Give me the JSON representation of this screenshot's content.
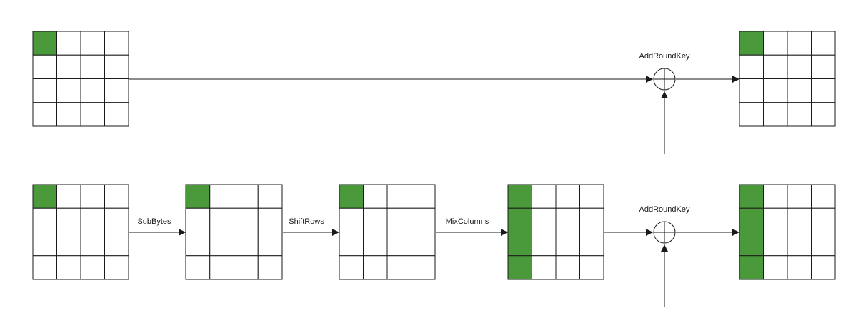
{
  "labels": {
    "top_add_round_key": "AddRoundKey",
    "sub_bytes": "SubBytes",
    "shift_rows": "ShiftRows",
    "mix_columns": "MixColumns",
    "bottom_add_round_key": "AddRoundKey"
  },
  "colors": {
    "highlight": "#4a9a3c",
    "stroke": "#1a1a1a",
    "background": "#ffffff"
  },
  "matrices": {
    "top_input": {
      "rows": 4,
      "cols": 4,
      "highlighted_cells": [
        [
          0,
          0
        ]
      ]
    },
    "top_output": {
      "rows": 4,
      "cols": 4,
      "highlighted_cells": [
        [
          0,
          0
        ]
      ]
    },
    "bottom_input": {
      "rows": 4,
      "cols": 4,
      "highlighted_cells": [
        [
          0,
          0
        ]
      ]
    },
    "after_sub_bytes": {
      "rows": 4,
      "cols": 4,
      "highlighted_cells": [
        [
          0,
          0
        ]
      ]
    },
    "after_shift_rows": {
      "rows": 4,
      "cols": 4,
      "highlighted_cells": [
        [
          0,
          0
        ]
      ]
    },
    "after_mix_columns": {
      "rows": 4,
      "cols": 4,
      "highlighted_cells": [
        [
          0,
          0
        ],
        [
          1,
          0
        ],
        [
          2,
          0
        ],
        [
          3,
          0
        ]
      ]
    },
    "bottom_output": {
      "rows": 4,
      "cols": 4,
      "highlighted_cells": [
        [
          0,
          0
        ],
        [
          1,
          0
        ],
        [
          2,
          0
        ],
        [
          3,
          0
        ]
      ]
    }
  }
}
